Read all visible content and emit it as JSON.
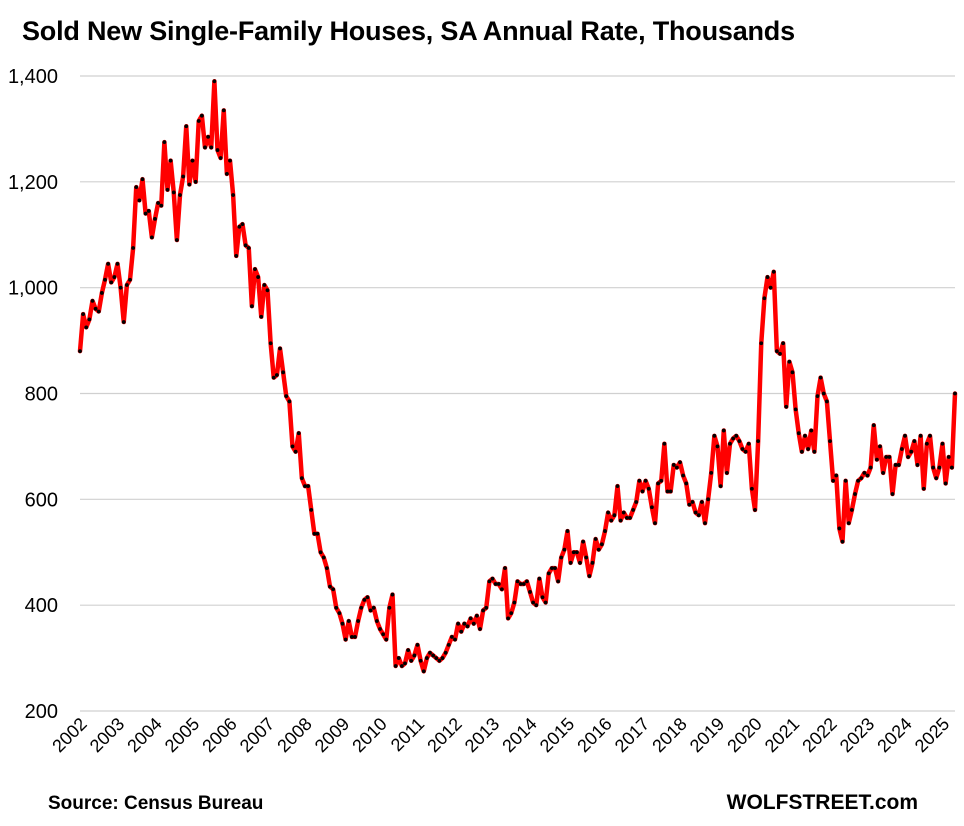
{
  "chart_data": {
    "type": "line",
    "title": "Sold New Single-Family Houses, SA Annual Rate, Thousands",
    "xlabel": "",
    "ylabel": "",
    "ylim": [
      200,
      1400
    ],
    "yticks": [
      200,
      400,
      600,
      800,
      1000,
      1200,
      1400
    ],
    "ytick_labels": [
      "200",
      "400",
      "600",
      "800",
      "1,000",
      "1,200",
      "1,400"
    ],
    "xticks": [
      "2002",
      "2003",
      "2004",
      "2005",
      "2006",
      "2007",
      "2008",
      "2009",
      "2010",
      "2011",
      "2012",
      "2013",
      "2014",
      "2015",
      "2016",
      "2017",
      "2018",
      "2019",
      "2020",
      "2021",
      "2022",
      "2023",
      "2024",
      "2025"
    ],
    "grid": "horizontal",
    "legend": "none",
    "line_color": "#ff0000",
    "marker_color": "#000000",
    "start": "2002-01",
    "end": "2025-08",
    "series": [
      {
        "values": [
          880,
          950,
          925,
          940,
          975,
          960,
          955,
          990,
          1015,
          1045,
          1010,
          1020,
          1045,
          1000,
          935,
          1005,
          1015,
          1075,
          1190,
          1165,
          1205,
          1140,
          1145,
          1095,
          1130,
          1160,
          1155,
          1275,
          1185,
          1240,
          1180,
          1090,
          1175,
          1210,
          1305,
          1195,
          1240,
          1200,
          1315,
          1325,
          1265,
          1285,
          1265,
          1390,
          1260,
          1245,
          1335,
          1215,
          1240,
          1175,
          1060,
          1115,
          1120,
          1080,
          1075,
          965,
          1035,
          1020,
          945,
          1005,
          995,
          895,
          830,
          835,
          885,
          840,
          795,
          785,
          700,
          690,
          725,
          640,
          625,
          625,
          580,
          535,
          535,
          500,
          490,
          470,
          435,
          430,
          395,
          385,
          365,
          335,
          370,
          340,
          340,
          370,
          395,
          410,
          415,
          390,
          395,
          370,
          355,
          345,
          335,
          395,
          420,
          285,
          300,
          285,
          290,
          315,
          295,
          305,
          325,
          295,
          275,
          300,
          310,
          305,
          300,
          295,
          300,
          310,
          325,
          340,
          335,
          365,
          350,
          365,
          360,
          375,
          365,
          380,
          355,
          390,
          395,
          445,
          450,
          440,
          440,
          430,
          470,
          375,
          385,
          405,
          445,
          440,
          440,
          445,
          425,
          405,
          400,
          450,
          415,
          405,
          460,
          470,
          470,
          445,
          490,
          505,
          540,
          480,
          500,
          500,
          480,
          520,
          490,
          455,
          480,
          525,
          505,
          515,
          540,
          575,
          560,
          570,
          625,
          560,
          575,
          565,
          565,
          580,
          595,
          635,
          615,
          635,
          620,
          585,
          555,
          630,
          635,
          705,
          615,
          615,
          665,
          660,
          670,
          645,
          630,
          590,
          595,
          575,
          570,
          595,
          555,
          600,
          650,
          720,
          700,
          625,
          730,
          650,
          705,
          715,
          720,
          710,
          695,
          690,
          705,
          620,
          580,
          710,
          895,
          980,
          1020,
          1000,
          1030,
          880,
          875,
          895,
          775,
          860,
          840,
          770,
          725,
          690,
          720,
          695,
          730,
          690,
          795,
          830,
          800,
          785,
          710,
          635,
          645,
          545,
          520,
          635,
          555,
          580,
          610,
          635,
          640,
          650,
          645,
          660,
          740,
          675,
          700,
          650,
          680,
          680,
          610,
          665,
          665,
          695,
          720,
          680,
          690,
          710,
          665,
          720,
          620,
          705,
          720,
          660,
          640,
          660,
          705,
          630,
          680,
          660,
          800
        ]
      }
    ]
  },
  "footer": {
    "source": "Source: Census Bureau",
    "brand": "WOLFSTREET.com"
  }
}
